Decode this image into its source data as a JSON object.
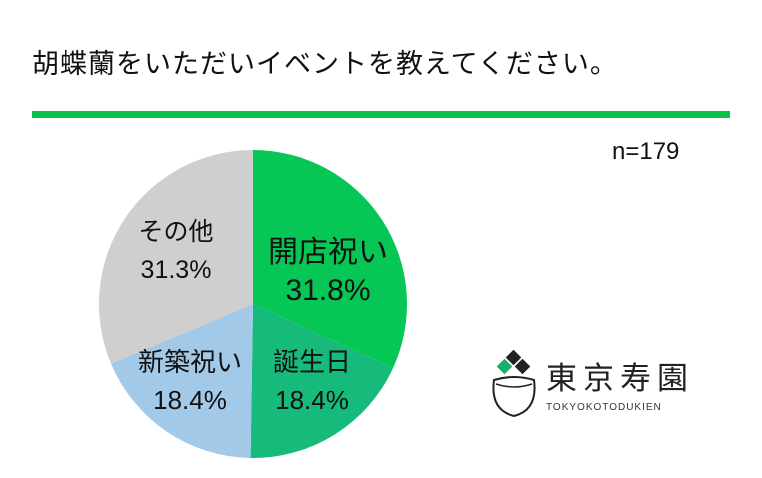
{
  "title": "胡蝶蘭をいただいイベントを教えてください。",
  "sample_size": "n=179",
  "colors": {
    "rule": "#08c34d",
    "slices": [
      "#06c655",
      "#16ba7a",
      "#a3c9e8",
      "#cfcfcf"
    ],
    "logo_accent": "#16b06a",
    "logo_dark": "#222222"
  },
  "chart_data": {
    "type": "pie",
    "title": "胡蝶蘭をいただいイベントを教えてください。",
    "slices": [
      {
        "label": "開店祝い",
        "value": 31.8,
        "value_label": "31.8%"
      },
      {
        "label": "誕生日",
        "value": 18.4,
        "value_label": "18.4%"
      },
      {
        "label": "新築祝い",
        "value": 18.4,
        "value_label": "18.4%"
      },
      {
        "label": "その他",
        "value": 31.3,
        "value_label": "31.3%"
      }
    ],
    "start": "12 o'clock",
    "direction": "clockwise",
    "legend": "none"
  },
  "logo": {
    "name": "東京寿園",
    "romaji": "TOKYOKOTODUKIEN",
    "icon": "orchid-pot-logo-icon"
  }
}
